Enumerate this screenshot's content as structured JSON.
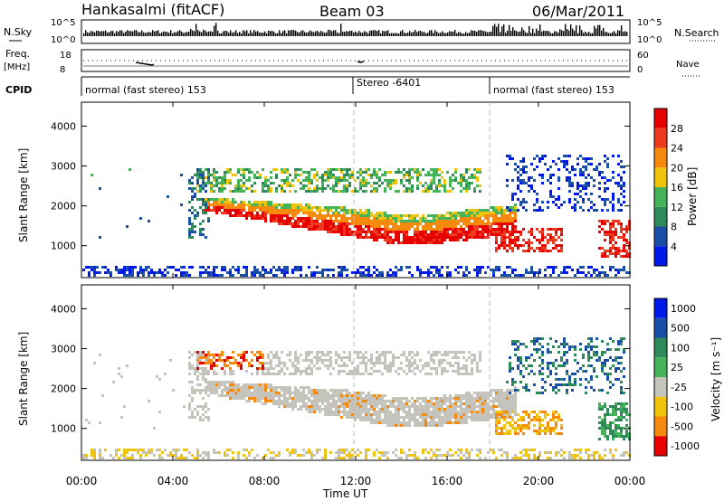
{
  "header": {
    "station": "Hankasalmi (fitACF)",
    "beam": "Beam 03",
    "date": "06/Mar/2011"
  },
  "nsky_panel": {
    "label": "N.Sky",
    "yticks": [
      "10^5",
      "10^0"
    ],
    "right_label": "N.Search",
    "right_yticks": [
      "10^5",
      "10^0"
    ]
  },
  "freq_panel": {
    "label_line1": "Freq.",
    "label_line2": "[MHz]",
    "yticks": [
      "18",
      "8"
    ],
    "right_label": "Nave",
    "right_yticks": [
      "60",
      "0"
    ]
  },
  "cpid_panel": {
    "label": "CPID",
    "segments": [
      {
        "text": "normal (fast stereo) 153",
        "start_hour": 0.0
      },
      {
        "text": "Stereo -6401",
        "start_hour": 12.0
      },
      {
        "text": "normal (fast stereo) 153",
        "start_hour": 18.0
      }
    ]
  },
  "chart_data": [
    {
      "type": "heatmap",
      "name": "power",
      "ylabel": "Slant Range [km]",
      "ylim": [
        200,
        4600
      ],
      "yticks": [
        1000,
        2000,
        3000,
        4000
      ],
      "xlim": [
        0,
        24
      ],
      "xlabel": "Time UT",
      "xticks": [
        "00:00",
        "04:00",
        "08:00",
        "12:00",
        "16:00",
        "20:00",
        "00:00"
      ],
      "xtick_hours": [
        0,
        4,
        8,
        12,
        16,
        20,
        24
      ],
      "colorbar": {
        "label": "Power [dB]",
        "range": [
          0,
          32
        ],
        "ticks": [
          4,
          8,
          12,
          16,
          20,
          24,
          28
        ],
        "colors": [
          "#0018e8",
          "#1b4fa7",
          "#2f8a5a",
          "#45b35a",
          "#f0c40c",
          "#f58a0e",
          "#ec3b1e",
          "#e70000"
        ]
      },
      "features": [
        {
          "feature": "main band",
          "t_start": 5.3,
          "t_end": 19.0,
          "range_km": [
            1050,
            1600
          ],
          "dB": 24
        },
        {
          "feature": "upper band",
          "t_start": 5.0,
          "t_end": 17.5,
          "range_km": [
            2400,
            2900
          ],
          "dB": 10
        },
        {
          "feature": "far range",
          "t_start": 18.5,
          "t_end": 24.0,
          "range_km": [
            1900,
            3300
          ],
          "dB": 8
        },
        {
          "feature": "near range",
          "t_start": 0.0,
          "t_end": 24.0,
          "range_km": [
            200,
            500
          ],
          "dB": 6
        }
      ]
    },
    {
      "type": "heatmap",
      "name": "velocity",
      "ylabel": "Slant Range [km]",
      "ylim": [
        200,
        4600
      ],
      "yticks": [
        1000,
        2000,
        3000,
        4000
      ],
      "xlim": [
        0,
        24
      ],
      "xlabel": "Time UT",
      "xticks": [
        "00:00",
        "04:00",
        "08:00",
        "12:00",
        "16:00",
        "20:00",
        "00:00"
      ],
      "xtick_hours": [
        0,
        4,
        8,
        12,
        16,
        20,
        24
      ],
      "colorbar": {
        "label": "Velocity [m s⁻¹]",
        "ticks": [
          "1000",
          "500",
          "100",
          "25",
          "-25",
          "-100",
          "-500",
          "-1000"
        ],
        "colors": [
          "#0018e8",
          "#1b4fa7",
          "#2f8a5a",
          "#45b35a",
          "#c4c4bc",
          "#f0c40c",
          "#f58a0e",
          "#e70000"
        ]
      },
      "features": [
        {
          "feature": "ground scatter",
          "t_start": 5.3,
          "t_end": 18.0,
          "range_km": [
            1000,
            2200
          ],
          "m_per_s": 0
        },
        {
          "feature": "upper band",
          "t_start": 5.5,
          "t_end": 8.0,
          "range_km": [
            2500,
            3200
          ],
          "m_per_s": -500
        },
        {
          "feature": "evening flow",
          "t_start": 18.0,
          "t_end": 21.0,
          "range_km": [
            900,
            1700
          ],
          "m_per_s": -400
        }
      ]
    }
  ]
}
